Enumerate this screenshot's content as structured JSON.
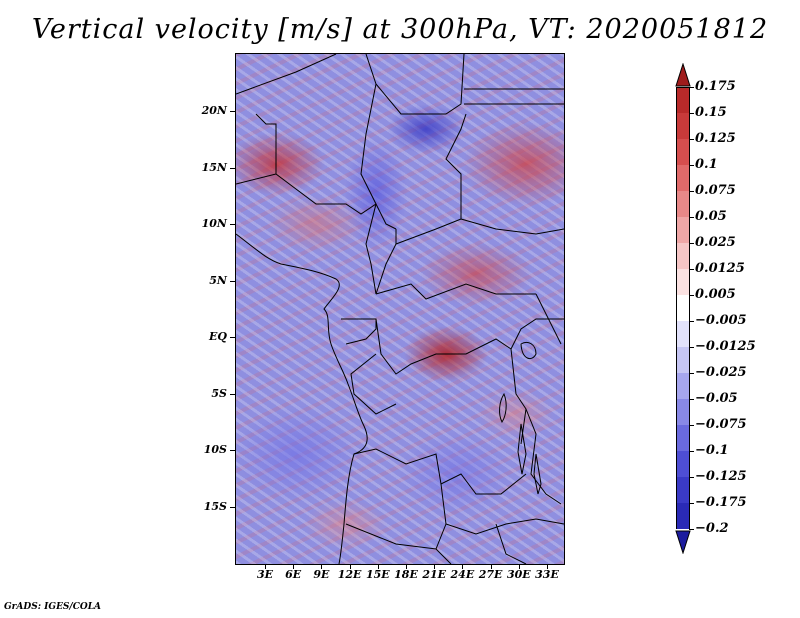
{
  "title": "Vertical velocity [m/s] at 300hPa, VT: 2020051812",
  "map": {
    "variable": "Vertical velocity",
    "units": "m/s",
    "level": "300hPa",
    "valid_time": "2020051812",
    "lat_labels": [
      "20N",
      "15N",
      "10N",
      "5N",
      "EQ",
      "5S",
      "10S",
      "15S"
    ],
    "lon_labels": [
      "3E",
      "6E",
      "9E",
      "12E",
      "15E",
      "18E",
      "21E",
      "24E",
      "27E",
      "30E",
      "33E"
    ],
    "lat_values": [
      20,
      15,
      10,
      5,
      0,
      -5,
      -10,
      -15
    ],
    "lon_values": [
      3,
      6,
      9,
      12,
      15,
      18,
      21,
      24,
      27,
      30,
      33
    ]
  },
  "colorbar": {
    "labels": [
      "0.175",
      "0.15",
      "0.125",
      "0.1",
      "0.075",
      "0.05",
      "0.025",
      "0.0125",
      "0.005",
      "−0.005",
      "−0.0125",
      "−0.025",
      "−0.05",
      "−0.075",
      "−0.1",
      "−0.125",
      "−0.175",
      "−0.2"
    ],
    "colors": [
      "#a01c1c",
      "#b82a2a",
      "#c83a3a",
      "#d54e4e",
      "#e06a6a",
      "#e88888",
      "#efa6a6",
      "#f6c6c6",
      "#fbe2e2",
      "#ffffff",
      "#e2e2fb",
      "#c6c6f4",
      "#a6a6ee",
      "#8888e6",
      "#6a6ade",
      "#4e4ed4",
      "#3a3ac6",
      "#2a2ab6",
      "#1c1c9e"
    ]
  },
  "footer": "GrADS: IGES/COLA"
}
